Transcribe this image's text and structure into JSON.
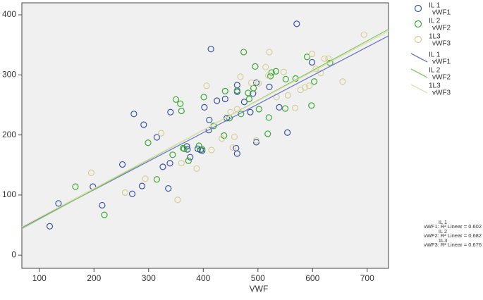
{
  "chart_data": {
    "type": "scatter",
    "x_label": "VWF",
    "xlim": [
      68,
      739
    ],
    "xticks": [
      100,
      200,
      300,
      400,
      500,
      600,
      700
    ],
    "ylim": [
      -22,
      420
    ],
    "yticks": [
      0,
      100,
      200,
      300,
      400
    ],
    "background": "#f0f0f0",
    "series": [
      {
        "name_lines": [
          "IL 1",
          "vWF1"
        ],
        "color": "#3a53a4",
        "x": [
          119,
          135,
          198,
          215,
          252,
          270,
          273,
          288,
          291,
          315,
          326,
          336,
          339,
          340,
          370,
          371,
          376,
          390,
          395,
          398,
          402,
          410,
          411,
          414,
          425,
          440,
          443,
          460,
          462,
          462,
          462,
          475,
          486,
          491,
          497,
          497,
          521,
          539,
          554,
          571,
          599
        ],
        "values": [
          48,
          86,
          114,
          83,
          151,
          102,
          235,
          115,
          217,
          196,
          147,
          111,
          153,
          238,
          181,
          176,
          163,
          177,
          175,
          174,
          246,
          208,
          225,
          343,
          257,
          260,
          228,
          178,
          169,
          283,
          272,
          255,
          238,
          269,
          188,
          287,
          280,
          246,
          204,
          385,
          321
        ]
      },
      {
        "name_lines": [
          "IL 2",
          "vWF2"
        ],
        "color": "#3aaa35",
        "x": [
          166,
          219,
          299,
          315,
          344,
          350,
          358,
          360,
          363,
          365,
          373,
          392,
          398,
          401,
          419,
          438,
          440,
          448,
          462,
          469,
          474,
          482,
          484,
          492,
          495,
          502,
          518,
          520,
          523,
          525,
          533,
          550,
          551,
          569,
          590,
          598,
          603,
          632
        ],
        "values": [
          114,
          67,
          187,
          126,
          167,
          259,
          252,
          240,
          178,
          177,
          157,
          182,
          176,
          263,
          215,
          199,
          273,
          228,
          274,
          235,
          338,
          270,
          260,
          278,
          314,
          243,
          202,
          229,
          298,
          304,
          306,
          244,
          293,
          294,
          330,
          249,
          289,
          320
        ]
      },
      {
        "name_lines": [
          "1L3",
          "vWF3"
        ],
        "color": "#d6cf9a",
        "x": [
          195,
          257,
          294,
          323,
          353,
          360,
          388,
          406,
          415,
          434,
          450,
          454,
          457,
          462,
          468,
          488,
          497,
          501,
          514,
          519,
          521,
          534,
          547,
          555,
          568,
          578,
          586,
          594,
          599,
          606,
          615,
          622,
          629,
          655,
          694
        ],
        "values": [
          137,
          104,
          127,
          203,
          92,
          153,
          144,
          282,
          175,
          194,
          238,
          179,
          197,
          243,
          297,
          287,
          191,
          286,
          313,
          299,
          338,
          263,
          305,
          266,
          245,
          275,
          279,
          282,
          335,
          310,
          303,
          327,
          327,
          289,
          367
        ]
      }
    ],
    "fit_lines": [
      {
        "name_lines": [
          "IL 1",
          "vWF1"
        ],
        "color": "#6d7cc4",
        "x": [
          68,
          739
        ],
        "values": [
          46,
          365
        ]
      },
      {
        "name_lines": [
          "IL 2",
          "vWF2"
        ],
        "color": "#86c96a",
        "x": [
          68,
          739
        ],
        "values": [
          44,
          376
        ]
      },
      {
        "name_lines": [
          "1L3",
          "vWF3"
        ],
        "color": "#e3deb0",
        "x": [
          68,
          739
        ],
        "values": [
          47,
          373
        ]
      }
    ],
    "annotations": [
      {
        "top": "IL 1",
        "text": "vWF1: R² Linear = 0.602"
      },
      {
        "top": "IL 2",
        "text": "vWF2: R² Linear = 0.682"
      },
      {
        "top": "1L3",
        "text": "vWF3: R² Linear = 0.676"
      }
    ]
  }
}
